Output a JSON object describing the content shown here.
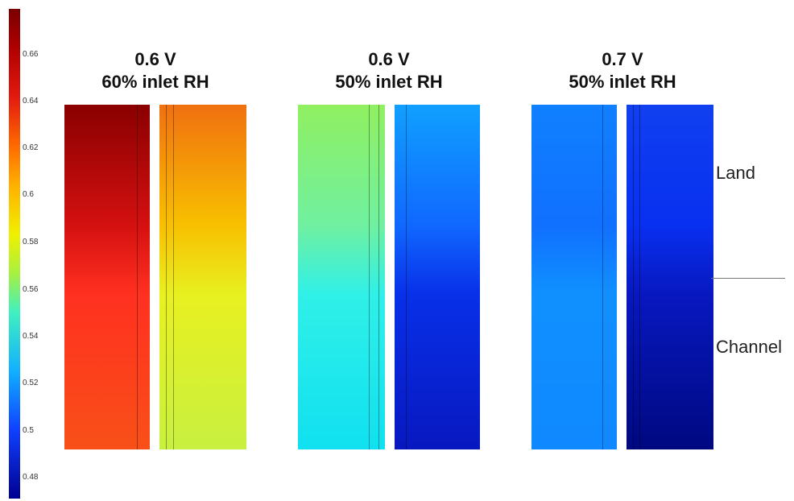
{
  "colorbar": {
    "ticks": [
      "0.66",
      "0.64",
      "0.62",
      "0.6",
      "0.58",
      "0.56",
      "0.54",
      "0.52",
      "0.5",
      "0.48"
    ]
  },
  "panels": [
    {
      "voltage": "0.6 V",
      "rh": "60% inlet RH",
      "left_colors": [
        "#8a0000",
        "#d41010",
        "#ff3020",
        "#f85018"
      ],
      "right_colors": [
        "#f07010",
        "#f8c000",
        "#e8f020",
        "#c8f040"
      ]
    },
    {
      "voltage": "0.6 V",
      "rh": "50% inlet RH",
      "left_colors": [
        "#90f060",
        "#70f0a0",
        "#30f0e8",
        "#10e0f0"
      ],
      "right_colors": [
        "#10a0ff",
        "#1068ff",
        "#0830e8",
        "#0818c0"
      ]
    },
    {
      "voltage": "0.7 V",
      "rh": "50% inlet RH",
      "left_colors": [
        "#1080ff",
        "#1070ff",
        "#1090ff",
        "#1088ff"
      ],
      "right_colors": [
        "#1040f0",
        "#0830f0",
        "#0818c0",
        "#000880"
      ]
    }
  ],
  "labels": {
    "land": "Land",
    "channel": "Channel"
  }
}
